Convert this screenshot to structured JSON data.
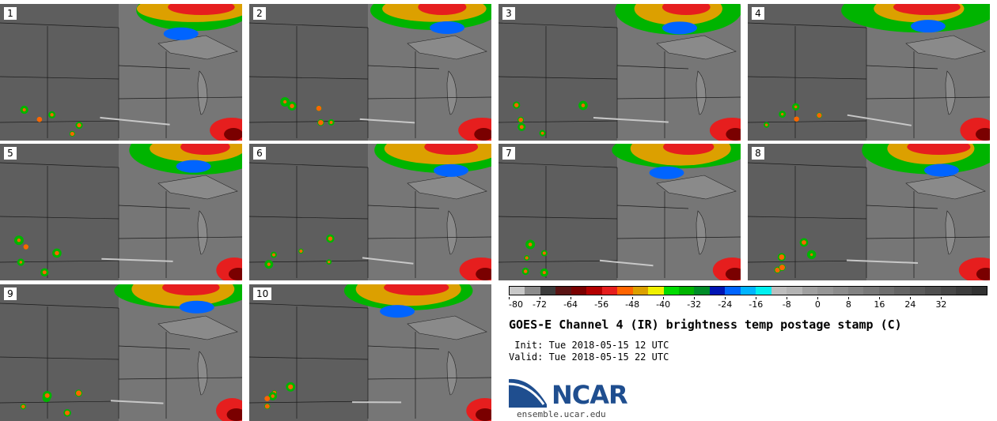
{
  "panels": [
    "1",
    "2",
    "3",
    "4",
    "5",
    "6",
    "7",
    "8",
    "9",
    "10"
  ],
  "colorbar": {
    "tick_labels": [
      "-80",
      "-72",
      "-64",
      "-56",
      "-48",
      "-40",
      "-32",
      "-24",
      "-16",
      "-8",
      "0",
      "8",
      "16",
      "24",
      "32"
    ],
    "colors": [
      "#c8c8c8",
      "#8c8c8c",
      "#3c3c3c",
      "#5a1414",
      "#7a0000",
      "#b40000",
      "#e61e1e",
      "#ff6400",
      "#dca000",
      "#f0f000",
      "#00dc00",
      "#00b400",
      "#008c28",
      "#0014b4",
      "#0064ff",
      "#00b4ff",
      "#00f0f0",
      "#bebebe",
      "#b4b4b4",
      "#a0a0a0",
      "#969696",
      "#8c8c8c",
      "#828282",
      "#787878",
      "#6e6e6e",
      "#646464",
      "#5a5a5a",
      "#505050",
      "#464646",
      "#3c3c3c",
      "#323232"
    ]
  },
  "title": "GOES-E Channel 4 (IR) brightness temp postage stamp (C)",
  "init_line": " Init: Tue 2018-05-15 12 UTC",
  "valid_line": "Valid: Tue 2018-05-15 22 UTC",
  "logo": {
    "text": "NCAR",
    "url": "ensemble.ucar.edu"
  }
}
